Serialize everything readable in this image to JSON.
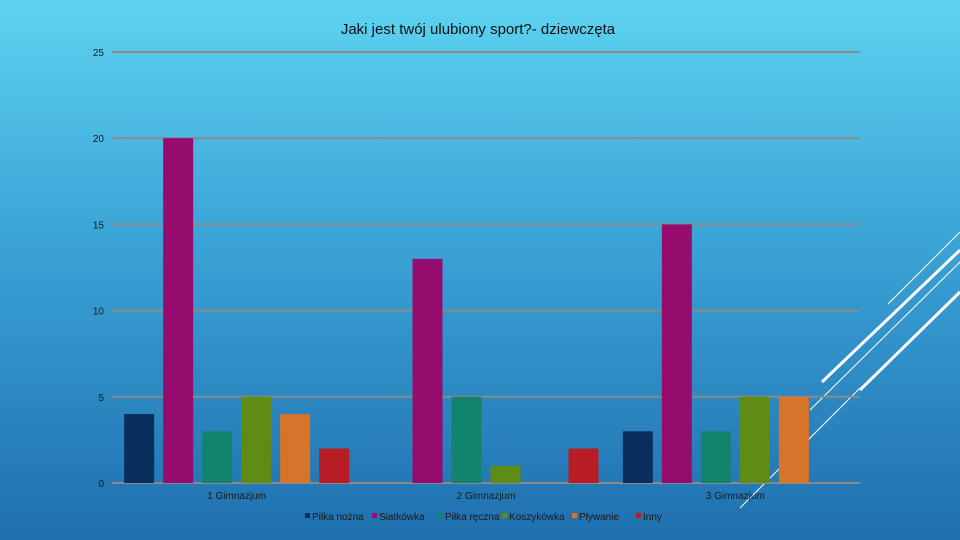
{
  "chart_data": {
    "type": "bar",
    "title": "Jaki jest twój ulubiony sport?- dziewczęta",
    "xlabel": "",
    "ylabel": "",
    "ylim": [
      0,
      25
    ],
    "yticks": [
      0,
      5,
      10,
      15,
      20,
      25
    ],
    "grid": true,
    "legend_position": "bottom",
    "categories": [
      "1 Gimnazjum",
      "2 Gimnazjum",
      "3 Gimnazjum"
    ],
    "series": [
      {
        "name": "Piłka nożna",
        "color": "#0a2f5c",
        "values": [
          4,
          0,
          3
        ]
      },
      {
        "name": "Siatkówka",
        "color": "#960b6e",
        "values": [
          20,
          13,
          15
        ]
      },
      {
        "name": "Piłka ręczna",
        "color": "#12836c",
        "values": [
          3,
          5,
          3
        ]
      },
      {
        "name": "Koszykówka",
        "color": "#5e8c14",
        "values": [
          5,
          1,
          5
        ]
      },
      {
        "name": "Pływanie",
        "color": "#d8732c",
        "values": [
          4,
          0,
          5
        ]
      },
      {
        "name": "Inny",
        "color": "#b81c24",
        "values": [
          2,
          2,
          0
        ]
      }
    ]
  }
}
